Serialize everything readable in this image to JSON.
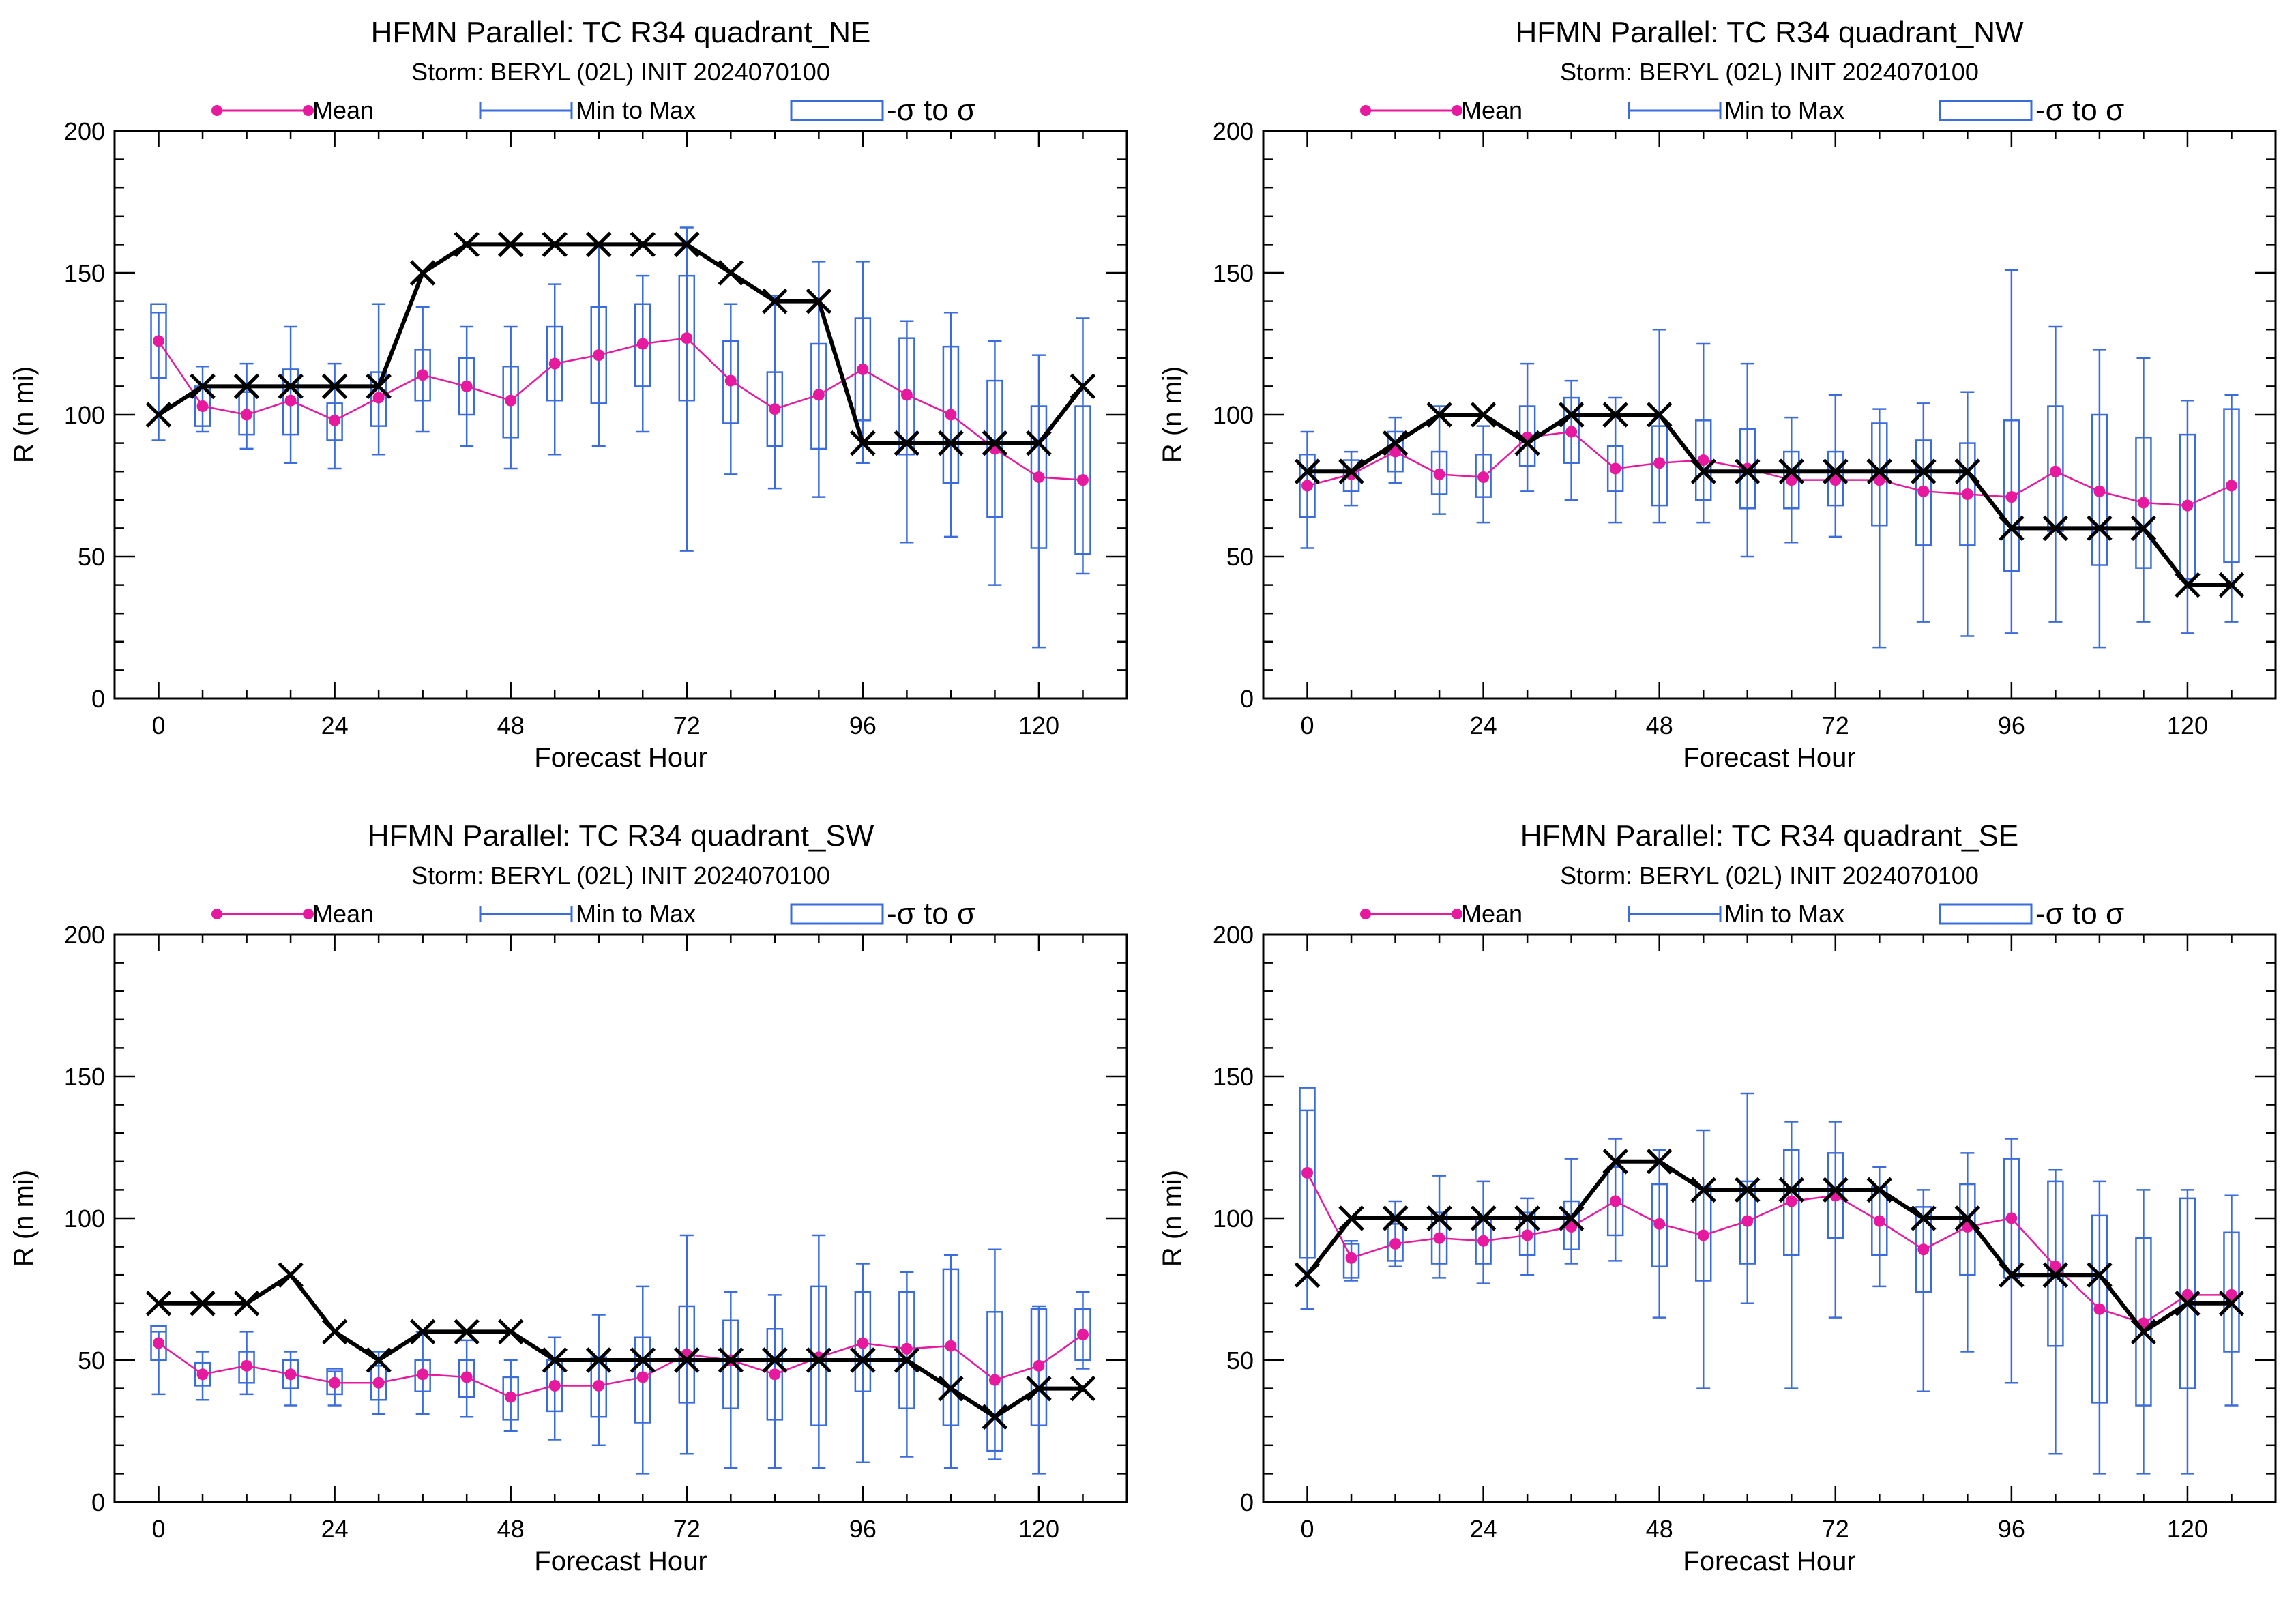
{
  "colors": {
    "mean": "#e6199f",
    "range": "#3a6cdc",
    "best": "#000000",
    "axis": "#000000"
  },
  "legend": {
    "mean": "Mean",
    "range": "Min to Max",
    "sigma": "-σ to σ"
  },
  "chart_data": [
    {
      "type": "box",
      "title": "HFMN Parallel: TC  R34 quadrant_NE",
      "subtitle": "Storm: BERYL (02L) INIT 2024070100",
      "xlabel": "Forecast Hour",
      "ylabel": "R (n mi)",
      "xlim": [
        -6,
        132
      ],
      "ylim": [
        0,
        200
      ],
      "xticks": [
        0,
        24,
        48,
        72,
        96,
        120
      ],
      "yticks": [
        0,
        50,
        100,
        150,
        200
      ],
      "x": [
        0,
        6,
        12,
        18,
        24,
        30,
        36,
        42,
        48,
        54,
        60,
        66,
        72,
        78,
        84,
        90,
        96,
        102,
        108,
        114,
        120,
        126
      ],
      "mean": [
        126,
        103,
        100,
        105,
        98,
        106,
        114,
        110,
        105,
        118,
        121,
        125,
        127,
        112,
        102,
        107,
        116,
        107,
        100,
        88,
        78,
        77
      ],
      "min": [
        91,
        94,
        88,
        83,
        81,
        86,
        94,
        89,
        81,
        86,
        89,
        94,
        52,
        79,
        74,
        71,
        83,
        55,
        57,
        40,
        18,
        44
      ],
      "max": [
        136,
        117,
        118,
        131,
        118,
        139,
        138,
        131,
        131,
        146,
        160,
        149,
        166,
        139,
        142,
        154,
        154,
        133,
        136,
        126,
        121,
        134
      ],
      "sigma_low": [
        113,
        96,
        93,
        93,
        91,
        96,
        105,
        100,
        92,
        105,
        104,
        110,
        105,
        97,
        89,
        88,
        98,
        86,
        76,
        64,
        53,
        51
      ],
      "sigma_high": [
        139,
        110,
        108,
        116,
        104,
        115,
        123,
        120,
        117,
        131,
        138,
        139,
        149,
        126,
        115,
        125,
        134,
        127,
        124,
        112,
        103,
        103
      ],
      "best_track": [
        100,
        110,
        110,
        110,
        110,
        110,
        150,
        160,
        160,
        160,
        160,
        160,
        160,
        150,
        140,
        140,
        90,
        90,
        90,
        90,
        90,
        110
      ]
    },
    {
      "type": "box",
      "title": "HFMN Parallel: TC  R34 quadrant_NW",
      "subtitle": "Storm: BERYL (02L) INIT 2024070100",
      "xlabel": "Forecast Hour",
      "ylabel": "R (n mi)",
      "xlim": [
        -6,
        132
      ],
      "ylim": [
        0,
        200
      ],
      "xticks": [
        0,
        24,
        48,
        72,
        96,
        120
      ],
      "yticks": [
        0,
        50,
        100,
        150,
        200
      ],
      "x": [
        0,
        6,
        12,
        18,
        24,
        30,
        36,
        42,
        48,
        54,
        60,
        66,
        72,
        78,
        84,
        90,
        96,
        102,
        108,
        114,
        120,
        126
      ],
      "mean": [
        75,
        79,
        87,
        79,
        78,
        92,
        94,
        81,
        83,
        84,
        81,
        77,
        77,
        77,
        73,
        72,
        71,
        80,
        73,
        69,
        68,
        75
      ],
      "min": [
        53,
        68,
        76,
        65,
        62,
        73,
        70,
        62,
        62,
        62,
        50,
        55,
        57,
        18,
        27,
        22,
        23,
        27,
        18,
        27,
        23,
        27
      ],
      "max": [
        94,
        87,
        99,
        103,
        96,
        118,
        112,
        106,
        130,
        125,
        118,
        99,
        107,
        102,
        104,
        108,
        151,
        131,
        123,
        120,
        105,
        107
      ],
      "sigma_low": [
        64,
        73,
        80,
        72,
        71,
        82,
        83,
        73,
        68,
        70,
        67,
        67,
        68,
        61,
        54,
        54,
        45,
        59,
        47,
        46,
        42,
        48
      ],
      "sigma_high": [
        86,
        84,
        94,
        87,
        86,
        103,
        106,
        89,
        96,
        98,
        95,
        87,
        87,
        97,
        91,
        90,
        98,
        103,
        100,
        92,
        93,
        102
      ],
      "best_track": [
        80,
        80,
        90,
        100,
        100,
        90,
        100,
        100,
        100,
        80,
        80,
        80,
        80,
        80,
        80,
        80,
        60,
        60,
        60,
        60,
        40,
        40
      ]
    },
    {
      "type": "box",
      "title": "HFMN Parallel: TC  R34 quadrant_SW",
      "subtitle": "Storm: BERYL (02L) INIT 2024070100",
      "xlabel": "Forecast Hour",
      "ylabel": "R (n mi)",
      "xlim": [
        -6,
        132
      ],
      "ylim": [
        0,
        200
      ],
      "xticks": [
        0,
        24,
        48,
        72,
        96,
        120
      ],
      "yticks": [
        0,
        50,
        100,
        150,
        200
      ],
      "x": [
        0,
        6,
        12,
        18,
        24,
        30,
        36,
        42,
        48,
        54,
        60,
        66,
        72,
        78,
        84,
        90,
        96,
        102,
        108,
        114,
        120,
        126
      ],
      "mean": [
        56,
        45,
        48,
        45,
        42,
        42,
        45,
        44,
        37,
        41,
        41,
        44,
        52,
        50,
        45,
        51,
        56,
        54,
        55,
        43,
        48,
        59
      ],
      "min": [
        38,
        36,
        38,
        34,
        34,
        31,
        31,
        30,
        25,
        22,
        20,
        10,
        17,
        12,
        12,
        12,
        14,
        16,
        12,
        15,
        10,
        47
      ],
      "max": [
        60,
        53,
        60,
        53,
        46,
        53,
        60,
        57,
        50,
        58,
        66,
        76,
        94,
        74,
        73,
        94,
        84,
        81,
        87,
        89,
        69,
        74
      ],
      "sigma_low": [
        50,
        41,
        42,
        40,
        38,
        36,
        39,
        37,
        29,
        32,
        30,
        28,
        35,
        33,
        29,
        27,
        39,
        33,
        27,
        18,
        27,
        50
      ],
      "sigma_high": [
        62,
        49,
        53,
        50,
        47,
        48,
        50,
        50,
        44,
        50,
        51,
        58,
        69,
        64,
        61,
        76,
        74,
        74,
        82,
        67,
        68,
        68
      ],
      "best_track": [
        70,
        70,
        70,
        80,
        60,
        50,
        60,
        60,
        60,
        50,
        50,
        50,
        50,
        50,
        50,
        50,
        50,
        50,
        40,
        30,
        40,
        40
      ]
    },
    {
      "type": "box",
      "title": "HFMN Parallel: TC  R34 quadrant_SE",
      "subtitle": "Storm: BERYL (02L) INIT 2024070100",
      "xlabel": "Forecast Hour",
      "ylabel": "R (n mi)",
      "xlim": [
        -6,
        132
      ],
      "ylim": [
        0,
        200
      ],
      "xticks": [
        0,
        24,
        48,
        72,
        96,
        120
      ],
      "yticks": [
        0,
        50,
        100,
        150,
        200
      ],
      "x": [
        0,
        6,
        12,
        18,
        24,
        30,
        36,
        42,
        48,
        54,
        60,
        66,
        72,
        78,
        84,
        90,
        96,
        102,
        108,
        114,
        120,
        126
      ],
      "mean": [
        116,
        86,
        91,
        93,
        92,
        94,
        97,
        106,
        98,
        94,
        99,
        106,
        108,
        99,
        89,
        97,
        100,
        83,
        68,
        63,
        73,
        73
      ],
      "min": [
        68,
        78,
        83,
        79,
        77,
        80,
        84,
        85,
        65,
        40,
        70,
        40,
        65,
        76,
        39,
        53,
        42,
        17,
        10,
        10,
        10,
        34
      ],
      "max": [
        138,
        92,
        106,
        115,
        113,
        107,
        121,
        128,
        124,
        131,
        144,
        134,
        134,
        118,
        110,
        123,
        128,
        117,
        113,
        110,
        110,
        108
      ],
      "sigma_low": [
        86,
        79,
        85,
        84,
        84,
        87,
        89,
        94,
        83,
        78,
        84,
        87,
        93,
        87,
        74,
        80,
        79,
        55,
        35,
        34,
        40,
        53
      ],
      "sigma_high": [
        146,
        91,
        98,
        102,
        100,
        102,
        106,
        118,
        112,
        111,
        113,
        124,
        123,
        111,
        104,
        112,
        121,
        113,
        101,
        93,
        107,
        95
      ],
      "best_track": [
        80,
        100,
        100,
        100,
        100,
        100,
        100,
        120,
        120,
        110,
        110,
        110,
        110,
        110,
        100,
        100,
        80,
        80,
        80,
        60,
        70,
        70
      ]
    }
  ]
}
